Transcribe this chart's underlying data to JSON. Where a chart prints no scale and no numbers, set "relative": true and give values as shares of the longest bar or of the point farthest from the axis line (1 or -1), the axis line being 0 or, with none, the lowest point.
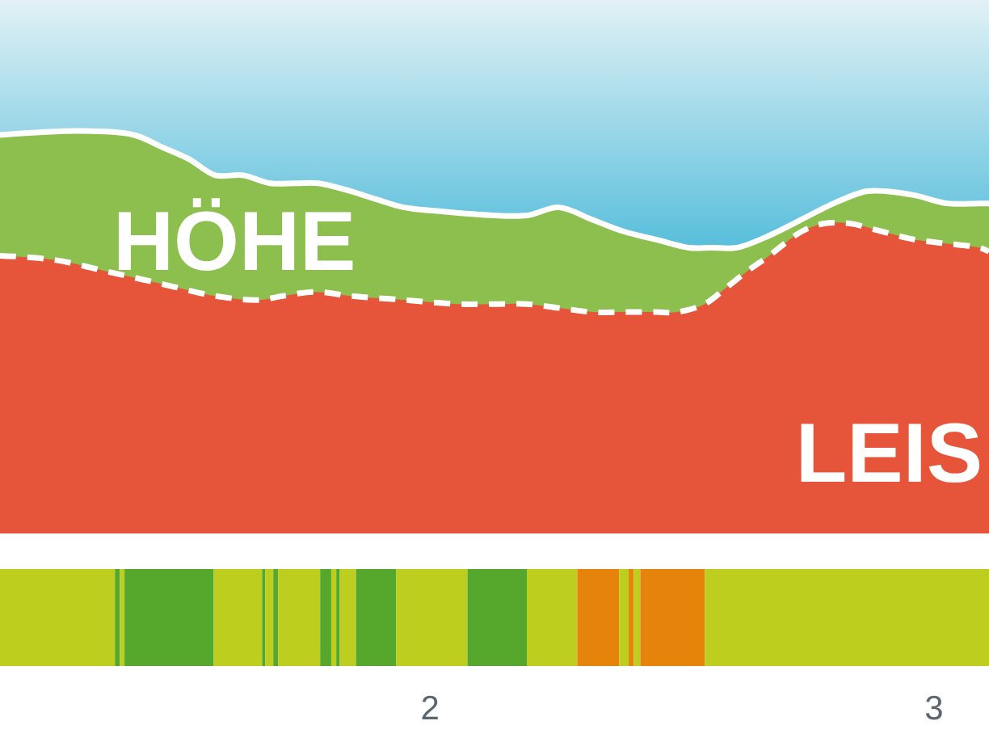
{
  "chart_data": [
    {
      "type": "area",
      "relative": true,
      "xlim": [
        1.147,
        3.109
      ],
      "xticks": [
        2,
        3
      ],
      "series": [
        {
          "name": "HÖHE",
          "color": "#8dbf4f",
          "line_style": "solid",
          "x": [
            1.147,
            1.308,
            1.413,
            1.468,
            1.522,
            1.574,
            1.628,
            1.683,
            1.734,
            1.779,
            1.843,
            1.894,
            1.949,
            2.022,
            2.128,
            2.192,
            2.256,
            2.321,
            2.385,
            2.449,
            2.513,
            2.558,
            2.609,
            2.673,
            2.737,
            2.801,
            2.865,
            2.907,
            2.962,
            3.026,
            3.09,
            3.109
          ],
          "values": [
            0.99,
            1.0,
            0.99,
            0.96,
            0.93,
            0.89,
            0.89,
            0.87,
            0.87,
            0.87,
            0.85,
            0.83,
            0.81,
            0.8,
            0.79,
            0.79,
            0.81,
            0.78,
            0.75,
            0.73,
            0.71,
            0.71,
            0.71,
            0.74,
            0.78,
            0.82,
            0.85,
            0.85,
            0.84,
            0.82,
            0.82,
            0.82
          ]
        },
        {
          "name": "LEIS",
          "color": "#e6553a",
          "line_style": "dashed",
          "x": [
            1.147,
            1.253,
            1.362,
            1.468,
            1.574,
            1.66,
            1.708,
            1.772,
            1.843,
            1.949,
            2.054,
            2.128,
            2.192,
            2.256,
            2.321,
            2.385,
            2.449,
            2.49,
            2.545,
            2.587,
            2.628,
            2.673,
            2.737,
            2.782,
            2.833,
            2.897,
            2.962,
            3.026,
            3.09,
            3.109
          ],
          "values": [
            0.69,
            0.68,
            0.65,
            0.62,
            0.59,
            0.58,
            0.59,
            0.6,
            0.59,
            0.58,
            0.57,
            0.57,
            0.57,
            0.56,
            0.55,
            0.55,
            0.55,
            0.55,
            0.57,
            0.61,
            0.65,
            0.69,
            0.75,
            0.77,
            0.77,
            0.75,
            0.73,
            0.72,
            0.71,
            0.7
          ]
        }
      ]
    },
    {
      "type": "bar",
      "orientation": "horizontal",
      "stacked": true,
      "relative": true,
      "categories": [
        null
      ],
      "series": [
        {
          "color": "#bdce1f",
          "values": [
            0.1162
          ]
        },
        {
          "color": "#55a82b",
          "values": [
            0.0051
          ]
        },
        {
          "color": "#bdce1f",
          "values": [
            0.0046
          ]
        },
        {
          "color": "#55a82b",
          "values": [
            0.0902
          ]
        },
        {
          "color": "#bdce1f",
          "values": [
            0.0489
          ]
        },
        {
          "color": "#55a82b",
          "values": [
            0.0031
          ]
        },
        {
          "color": "#bdce1f",
          "values": [
            0.0082
          ]
        },
        {
          "color": "#55a82b",
          "values": [
            0.0051
          ]
        },
        {
          "color": "#bdce1f",
          "values": [
            0.0423
          ]
        },
        {
          "color": "#55a82b",
          "values": [
            0.0112
          ]
        },
        {
          "color": "#bdce1f",
          "values": [
            0.0051
          ]
        },
        {
          "color": "#55a82b",
          "values": [
            0.0036
          ]
        },
        {
          "color": "#bdce1f",
          "values": [
            0.0163
          ]
        },
        {
          "color": "#55a82b",
          "values": [
            0.0408
          ]
        },
        {
          "color": "#bdce1f",
          "values": [
            0.0719
          ]
        },
        {
          "color": "#55a82b",
          "values": [
            0.0601
          ]
        },
        {
          "color": "#bdce1f",
          "values": [
            0.051
          ]
        },
        {
          "color": "#e5830b",
          "values": [
            0.0423
          ]
        },
        {
          "color": "#bdce1f",
          "values": [
            0.0097
          ]
        },
        {
          "color": "#e5830b",
          "values": [
            0.0051
          ]
        },
        {
          "color": "#bdce1f",
          "values": [
            0.0066
          ]
        },
        {
          "color": "#e5830b",
          "values": [
            0.0652
          ]
        },
        {
          "color": "#bdce1f",
          "values": [
            0.2874
          ]
        }
      ]
    }
  ]
}
